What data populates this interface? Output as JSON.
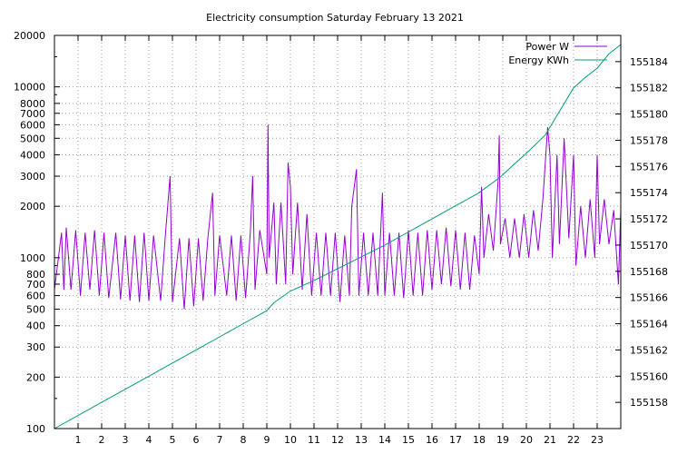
{
  "chart_data": {
    "type": "line",
    "title": "Electricity consumption Saturday February 13 2021",
    "xlabel": "",
    "ylabel": "",
    "y2label": "",
    "xlim": [
      0,
      24
    ],
    "ylim": [
      100,
      20000
    ],
    "y_scale": "log",
    "y2lim": [
      155156,
      155186
    ],
    "x_ticks": [
      1,
      2,
      3,
      4,
      5,
      6,
      7,
      8,
      9,
      10,
      11,
      12,
      13,
      14,
      15,
      16,
      17,
      18,
      19,
      20,
      21,
      22,
      23
    ],
    "y_ticks": [
      100,
      200,
      300,
      400,
      500,
      600,
      700,
      800,
      1000,
      2000,
      3000,
      4000,
      5000,
      6000,
      7000,
      8000,
      10000,
      20000
    ],
    "y2_ticks": [
      155158,
      155160,
      155162,
      155164,
      155166,
      155168,
      155170,
      155172,
      155174,
      155176,
      155178,
      155180,
      155182,
      155184
    ],
    "grid": true,
    "legend_position": "top-right",
    "series": [
      {
        "name": "Power W",
        "axis": "left",
        "color": "#9400d3",
        "points": [
          [
            0.0,
            650
          ],
          [
            0.3,
            1400
          ],
          [
            0.4,
            650
          ],
          [
            0.5,
            1500
          ],
          [
            0.7,
            650
          ],
          [
            0.9,
            1450
          ],
          [
            1.1,
            600
          ],
          [
            1.3,
            1400
          ],
          [
            1.5,
            650
          ],
          [
            1.7,
            1450
          ],
          [
            1.9,
            600
          ],
          [
            2.1,
            1400
          ],
          [
            2.3,
            580
          ],
          [
            2.6,
            1400
          ],
          [
            2.8,
            570
          ],
          [
            3.0,
            1350
          ],
          [
            3.2,
            560
          ],
          [
            3.4,
            1350
          ],
          [
            3.6,
            550
          ],
          [
            3.8,
            1400
          ],
          [
            4.0,
            560
          ],
          [
            4.2,
            1350
          ],
          [
            4.5,
            560
          ],
          [
            4.7,
            1350
          ],
          [
            4.9,
            3000
          ],
          [
            5.0,
            550
          ],
          [
            5.3,
            1300
          ],
          [
            5.5,
            500
          ],
          [
            5.7,
            1300
          ],
          [
            5.9,
            520
          ],
          [
            6.1,
            1300
          ],
          [
            6.3,
            560
          ],
          [
            6.5,
            1300
          ],
          [
            6.7,
            2400
          ],
          [
            6.8,
            600
          ],
          [
            7.0,
            1350
          ],
          [
            7.3,
            600
          ],
          [
            7.5,
            1350
          ],
          [
            7.7,
            560
          ],
          [
            7.9,
            1350
          ],
          [
            8.1,
            580
          ],
          [
            8.3,
            1400
          ],
          [
            8.4,
            3000
          ],
          [
            8.5,
            650
          ],
          [
            8.7,
            1450
          ],
          [
            9.0,
            800
          ],
          [
            9.05,
            6000
          ],
          [
            9.1,
            1000
          ],
          [
            9.3,
            2100
          ],
          [
            9.4,
            700
          ],
          [
            9.6,
            2100
          ],
          [
            9.8,
            700
          ],
          [
            9.9,
            3600
          ],
          [
            10.0,
            2600
          ],
          [
            10.1,
            800
          ],
          [
            10.3,
            2100
          ],
          [
            10.5,
            650
          ],
          [
            10.7,
            1800
          ],
          [
            10.9,
            600
          ],
          [
            11.1,
            1400
          ],
          [
            11.3,
            600
          ],
          [
            11.5,
            1400
          ],
          [
            11.7,
            600
          ],
          [
            11.9,
            1400
          ],
          [
            12.1,
            550
          ],
          [
            12.3,
            1350
          ],
          [
            12.5,
            600
          ],
          [
            12.6,
            2000
          ],
          [
            12.8,
            3300
          ],
          [
            12.9,
            600
          ],
          [
            13.1,
            1400
          ],
          [
            13.3,
            600
          ],
          [
            13.5,
            1400
          ],
          [
            13.7,
            600
          ],
          [
            13.9,
            2400
          ],
          [
            14.0,
            600
          ],
          [
            14.2,
            1400
          ],
          [
            14.4,
            600
          ],
          [
            14.6,
            1400
          ],
          [
            14.8,
            580
          ],
          [
            15.0,
            1450
          ],
          [
            15.2,
            600
          ],
          [
            15.4,
            1400
          ],
          [
            15.6,
            600
          ],
          [
            15.8,
            1450
          ],
          [
            16.0,
            650
          ],
          [
            16.2,
            1450
          ],
          [
            16.4,
            700
          ],
          [
            16.6,
            1500
          ],
          [
            16.8,
            680
          ],
          [
            17.0,
            1450
          ],
          [
            17.2,
            650
          ],
          [
            17.4,
            1400
          ],
          [
            17.6,
            650
          ],
          [
            17.8,
            1350
          ],
          [
            18.0,
            800
          ],
          [
            18.1,
            2600
          ],
          [
            18.2,
            1000
          ],
          [
            18.4,
            1800
          ],
          [
            18.6,
            1100
          ],
          [
            18.8,
            2800
          ],
          [
            18.85,
            5200
          ],
          [
            18.9,
            1200
          ],
          [
            19.1,
            1700
          ],
          [
            19.3,
            1000
          ],
          [
            19.5,
            1700
          ],
          [
            19.7,
            1000
          ],
          [
            19.9,
            1800
          ],
          [
            20.1,
            1000
          ],
          [
            20.3,
            1900
          ],
          [
            20.5,
            1100
          ],
          [
            20.7,
            2200
          ],
          [
            20.9,
            5800
          ],
          [
            21.0,
            4000
          ],
          [
            21.1,
            1000
          ],
          [
            21.3,
            4000
          ],
          [
            21.4,
            1200
          ],
          [
            21.6,
            5000
          ],
          [
            21.8,
            1300
          ],
          [
            22.0,
            4000
          ],
          [
            22.1,
            900
          ],
          [
            22.3,
            2000
          ],
          [
            22.5,
            1000
          ],
          [
            22.7,
            2200
          ],
          [
            22.9,
            1000
          ],
          [
            23.0,
            4000
          ],
          [
            23.1,
            1200
          ],
          [
            23.3,
            2200
          ],
          [
            23.5,
            1200
          ],
          [
            23.7,
            1900
          ],
          [
            23.9,
            700
          ],
          [
            24.0,
            1900
          ]
        ]
      },
      {
        "name": "Energy KWh",
        "axis": "right",
        "color": "#009e73",
        "points": [
          [
            0.0,
            155156.0
          ],
          [
            1.0,
            155157.0
          ],
          [
            2.0,
            155158.0
          ],
          [
            3.0,
            155159.0
          ],
          [
            4.0,
            155160.0
          ],
          [
            5.0,
            155161.0
          ],
          [
            6.0,
            155162.0
          ],
          [
            7.0,
            155163.0
          ],
          [
            8.0,
            155164.0
          ],
          [
            9.0,
            155165.0
          ],
          [
            9.3,
            155165.6
          ],
          [
            10.0,
            155166.5
          ],
          [
            11.0,
            155167.3
          ],
          [
            12.0,
            155168.2
          ],
          [
            13.0,
            155169.1
          ],
          [
            14.0,
            155170.0
          ],
          [
            15.0,
            155171.0
          ],
          [
            16.0,
            155172.0
          ],
          [
            17.0,
            155173.0
          ],
          [
            18.0,
            155174.0
          ],
          [
            18.9,
            155175.2
          ],
          [
            19.5,
            155176.2
          ],
          [
            20.0,
            155177.0
          ],
          [
            20.8,
            155178.4
          ],
          [
            21.5,
            155180.5
          ],
          [
            22.0,
            155182.0
          ],
          [
            22.5,
            155182.8
          ],
          [
            23.0,
            155183.5
          ],
          [
            23.5,
            155184.6
          ],
          [
            24.0,
            155185.3
          ]
        ]
      }
    ]
  }
}
